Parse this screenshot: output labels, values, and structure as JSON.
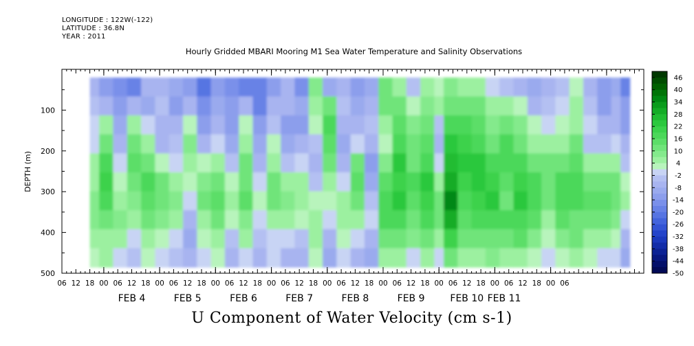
{
  "header": {
    "longitude": "LONGITUDE : 122W(-122)",
    "latitude": "LATITUDE : 36.8N",
    "year": "YEAR : 2011"
  },
  "chart_data": {
    "type": "heatmap",
    "title": "Hourly Gridded MBARI Mooring M1 Sea Water Temperature and Salinity Observations",
    "xlabel": "U Component of Water Velocity (cm s-1)",
    "ylabel": "DEPTH (m)",
    "ylim": [
      0,
      500
    ],
    "y_ticks": [
      100,
      200,
      300,
      400,
      500
    ],
    "y_tick_labels": [
      "100",
      "200",
      "300",
      "400",
      "500"
    ],
    "x_hour_labels": [
      "06",
      "12",
      "18",
      "00",
      "06",
      "12",
      "18",
      "00",
      "06",
      "12",
      "18",
      "00",
      "06",
      "12",
      "18",
      "00",
      "06",
      "12",
      "18",
      "00",
      "06",
      "12",
      "18",
      "00",
      "06",
      "12",
      "18",
      "00",
      "06",
      "12",
      "18",
      "00",
      "06",
      "12",
      "18",
      "00",
      "06"
    ],
    "x_day_labels": [
      "FEB 4",
      "FEB 5",
      "FEB 6",
      "FEB 7",
      "FEB 8",
      "FEB 9",
      "FEB 10",
      "FEB 11"
    ],
    "data_extent": {
      "depth_min": 20,
      "depth_max": 485
    },
    "colorbar": {
      "labels": [
        "46",
        "40",
        "34",
        "28",
        "22",
        "16",
        "10",
        "4",
        "-2",
        "-8",
        "-14",
        "-20",
        "-26",
        "-32",
        "-38",
        "-44",
        "-50"
      ],
      "levels": [
        46,
        43,
        40,
        37,
        34,
        31,
        28,
        25,
        22,
        19,
        16,
        13,
        10,
        7,
        4,
        1,
        -2,
        -5,
        -8,
        -11,
        -14,
        -17,
        -20,
        -23,
        -26,
        -29,
        -32,
        -35,
        -38,
        -41,
        -44,
        -47,
        -50
      ],
      "colors": [
        "#003800",
        "#004c00",
        "#006000",
        "#007408",
        "#008812",
        "#0a9c1c",
        "#14ac26",
        "#20bc32",
        "#2cc83e",
        "#3cd24c",
        "#4cd85a",
        "#5cde68",
        "#70e47a",
        "#84ea8c",
        "#9cf0a0",
        "#b8f4bc",
        "#c8d4f4",
        "#b4c0f2",
        "#a8b4f0",
        "#9aaaee",
        "#8c9eec",
        "#7a90ea",
        "#6882e6",
        "#5674e2",
        "#4464dc",
        "#3454d4",
        "#2444ca",
        "#1a38bc",
        "#122ca8",
        "#0c2294",
        "#081880",
        "#04106a",
        "#020a56"
      ]
    },
    "columns": [
      {
        "hours": [
          12,
          16
        ],
        "profile": [
          -8,
          -5,
          -2,
          0,
          4,
          6,
          8,
          7,
          4,
          2
        ]
      },
      {
        "hours": [
          16,
          22
        ],
        "profile": [
          -12,
          -6,
          4,
          12,
          16,
          20,
          16,
          10,
          6,
          4
        ]
      },
      {
        "hours": [
          22,
          28
        ],
        "profile": [
          -16,
          -14,
          -10,
          -6,
          -2,
          2,
          6,
          8,
          4,
          0
        ]
      },
      {
        "hours": [
          28,
          34
        ],
        "profile": [
          -20,
          -8,
          4,
          10,
          14,
          12,
          8,
          4,
          -2,
          -4
        ]
      },
      {
        "hours": [
          34,
          40
        ],
        "profile": [
          -8,
          -10,
          -2,
          4,
          10,
          16,
          14,
          10,
          4,
          2
        ]
      },
      {
        "hours": [
          40,
          46
        ],
        "profile": [
          -6,
          -4,
          -8,
          -6,
          2,
          10,
          12,
          8,
          2,
          -2
        ]
      },
      {
        "hours": [
          46,
          52
        ],
        "profile": [
          -10,
          -12,
          -8,
          -4,
          0,
          4,
          8,
          6,
          0,
          -4
        ]
      },
      {
        "hours": [
          52,
          58
        ],
        "profile": [
          -14,
          -8,
          2,
          8,
          6,
          2,
          -2,
          -6,
          -10,
          -8
        ]
      },
      {
        "hours": [
          58,
          64
        ],
        "profile": [
          -22,
          -16,
          -12,
          -6,
          2,
          8,
          12,
          6,
          2,
          -2
        ]
      },
      {
        "hours": [
          64,
          70
        ],
        "profile": [
          -14,
          -10,
          -6,
          -2,
          4,
          10,
          14,
          12,
          6,
          2
        ]
      },
      {
        "hours": [
          70,
          76
        ],
        "profile": [
          -16,
          -12,
          -14,
          -10,
          -4,
          2,
          4,
          2,
          -4,
          -6
        ]
      },
      {
        "hours": [
          76,
          82
        ],
        "profile": [
          -18,
          -6,
          2,
          6,
          10,
          12,
          14,
          8,
          4,
          0
        ]
      },
      {
        "hours": [
          82,
          88
        ],
        "profile": [
          -20,
          -18,
          -14,
          -10,
          -6,
          -2,
          2,
          0,
          -4,
          -8
        ]
      },
      {
        "hours": [
          88,
          94
        ],
        "profile": [
          -12,
          -8,
          -4,
          2,
          6,
          12,
          10,
          6,
          0,
          -2
        ]
      },
      {
        "hours": [
          94,
          100
        ],
        "profile": [
          -6,
          -8,
          -12,
          -10,
          -4,
          4,
          8,
          4,
          -2,
          -6
        ]
      },
      {
        "hours": [
          100,
          106
        ],
        "profile": [
          -16,
          -10,
          -12,
          -8,
          -2,
          4,
          6,
          2,
          -4,
          -6
        ]
      },
      {
        "hours": [
          106,
          112
        ],
        "profile": [
          8,
          6,
          2,
          -4,
          -8,
          -4,
          2,
          6,
          4,
          2
        ]
      },
      {
        "hours": [
          112,
          118
        ],
        "profile": [
          -10,
          10,
          16,
          14,
          10,
          6,
          2,
          -2,
          -6,
          -10
        ]
      },
      {
        "hours": [
          118,
          124
        ],
        "profile": [
          -6,
          -4,
          -8,
          -10,
          -6,
          -2,
          4,
          6,
          2,
          -2
        ]
      },
      {
        "hours": [
          124,
          130
        ],
        "profile": [
          -14,
          -10,
          -6,
          -2,
          10,
          14,
          10,
          4,
          -2,
          -6
        ]
      },
      {
        "hours": [
          130,
          136
        ],
        "profile": [
          -10,
          -6,
          -4,
          -8,
          -12,
          -10,
          -4,
          0,
          -6,
          -10
        ]
      },
      {
        "hours": [
          136,
          142
        ],
        "profile": [
          10,
          12,
          6,
          2,
          8,
          14,
          18,
          16,
          12,
          6
        ]
      },
      {
        "hours": [
          142,
          148
        ],
        "profile": [
          6,
          10,
          14,
          18,
          22,
          20,
          24,
          18,
          10,
          4
        ]
      },
      {
        "hours": [
          148,
          154
        ],
        "profile": [
          -4,
          2,
          8,
          10,
          12,
          16,
          14,
          12,
          8,
          -2
        ]
      },
      {
        "hours": [
          154,
          160
        ],
        "profile": [
          4,
          8,
          10,
          14,
          18,
          22,
          20,
          16,
          12,
          6
        ]
      },
      {
        "hours": [
          160,
          164
        ],
        "profile": [
          2,
          6,
          -4,
          -8,
          -2,
          6,
          10,
          12,
          6,
          -2
        ]
      },
      {
        "hours": [
          164,
          170
        ],
        "profile": [
          8,
          12,
          18,
          22,
          26,
          28,
          34,
          30,
          20,
          12
        ]
      },
      {
        "hours": [
          170,
          176
        ],
        "profile": [
          4,
          12,
          16,
          20,
          24,
          20,
          18,
          14,
          10,
          6
        ]
      },
      {
        "hours": [
          176,
          182
        ],
        "profile": [
          6,
          10,
          14,
          18,
          22,
          24,
          20,
          16,
          12,
          6
        ]
      },
      {
        "hours": [
          182,
          188
        ],
        "profile": [
          0,
          4,
          8,
          12,
          16,
          20,
          22,
          18,
          12,
          8
        ]
      },
      {
        "hours": [
          188,
          194
        ],
        "profile": [
          -4,
          6,
          10,
          16,
          18,
          14,
          12,
          16,
          10,
          4
        ]
      },
      {
        "hours": [
          194,
          200
        ],
        "profile": [
          -8,
          2,
          8,
          12,
          16,
          20,
          22,
          18,
          14,
          6
        ]
      },
      {
        "hours": [
          200,
          206
        ],
        "profile": [
          -10,
          -6,
          2,
          6,
          10,
          16,
          18,
          14,
          8,
          2
        ]
      },
      {
        "hours": [
          206,
          212
        ],
        "profile": [
          -6,
          -4,
          -2,
          4,
          10,
          12,
          10,
          6,
          2,
          -2
        ]
      },
      {
        "hours": [
          212,
          218
        ],
        "profile": [
          -4,
          -2,
          2,
          6,
          12,
          16,
          18,
          14,
          8,
          2
        ]
      },
      {
        "hours": [
          218,
          224
        ],
        "profile": [
          2,
          4,
          6,
          10,
          14,
          18,
          16,
          12,
          10,
          4
        ]
      },
      {
        "hours": [
          224,
          230
        ],
        "profile": [
          -6,
          -4,
          -2,
          -4,
          4,
          10,
          14,
          12,
          6,
          2
        ]
      },
      {
        "hours": [
          230,
          236
        ],
        "profile": [
          -14,
          -12,
          -8,
          -4,
          6,
          12,
          14,
          10,
          4,
          -2
        ]
      },
      {
        "hours": [
          236,
          240
        ],
        "profile": [
          -10,
          -8,
          -6,
          -2,
          4,
          10,
          12,
          8,
          2,
          -2
        ]
      },
      {
        "hours": [
          240,
          244
        ],
        "profile": [
          -18,
          -14,
          -12,
          -8,
          -4,
          2,
          4,
          0,
          -6,
          -10
        ]
      }
    ]
  }
}
